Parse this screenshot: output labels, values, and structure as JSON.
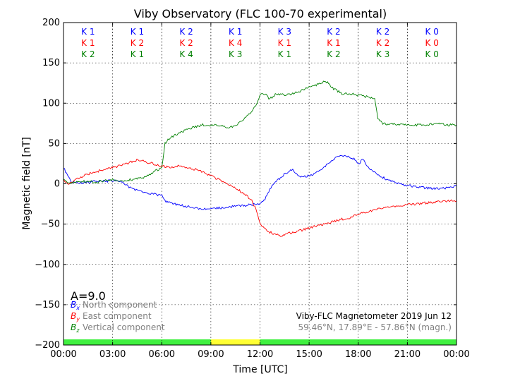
{
  "chart_data": {
    "type": "line",
    "title": "Viby Observatory (FLC 100-70 experimental)",
    "xlabel": "Time [UTC]",
    "ylabel": "Magnetic field [nT]",
    "xlim": [
      0,
      24
    ],
    "ylim": [
      -200,
      200
    ],
    "grid": true,
    "x_tick_labels": [
      "00:00",
      "03:00",
      "06:00",
      "09:00",
      "12:00",
      "15:00",
      "18:00",
      "21:00",
      "00:00"
    ],
    "y_ticks": [
      -200,
      -150,
      -100,
      -50,
      0,
      50,
      100,
      150,
      200
    ],
    "y_tick_labels": [
      "−200",
      "−150",
      "−100",
      "−50",
      "0",
      "50",
      "100",
      "150",
      "200"
    ],
    "k_index_rows": [
      {
        "values": [
          "K 1",
          "K 1",
          "K 2",
          "K 1",
          "K 3",
          "K 2",
          "K 2",
          "K 0"
        ],
        "color": "#0000ff"
      },
      {
        "values": [
          "K 1",
          "K 2",
          "K 2",
          "K 4",
          "K 1",
          "K 1",
          "K 2",
          "K 0"
        ],
        "color": "#ff0000"
      },
      {
        "values": [
          "K 2",
          "K 1",
          "K 4",
          "K 3",
          "K 1",
          "K 2",
          "K 3",
          "K 0"
        ],
        "color": "#008000"
      }
    ],
    "activity_bar": [
      {
        "from": 0,
        "to": 9,
        "color": "#40f040"
      },
      {
        "from": 9,
        "to": 12,
        "color": "#ffff33"
      },
      {
        "from": 12,
        "to": 24,
        "color": "#40f040"
      }
    ],
    "a_index_label": "A=9.0",
    "legend_placement": "bottom-left",
    "series": [
      {
        "symbol": "B",
        "subscript": "x",
        "name": "North component",
        "color": "#0000ff",
        "x": [
          0,
          0.5,
          1,
          1.5,
          2,
          2.5,
          3,
          3.5,
          4,
          4.5,
          5,
          5.5,
          6,
          6.2,
          6.5,
          7,
          7.5,
          8,
          8.5,
          9,
          9.5,
          10,
          10.5,
          11,
          11.5,
          11.8,
          12,
          12.3,
          12.6,
          13,
          13.3,
          13.6,
          14,
          14.3,
          14.6,
          15,
          15.3,
          15.7,
          16,
          16.3,
          16.6,
          16.9,
          17.2,
          17.5,
          17.8,
          18,
          18.3,
          18.6,
          19,
          19.5,
          20,
          20.5,
          21,
          21.5,
          22,
          22.5,
          23,
          23.5,
          24
        ],
        "values": [
          20,
          2,
          1,
          2,
          3,
          3,
          4,
          3,
          -4,
          -8,
          -11,
          -13,
          -14,
          -21,
          -24,
          -26,
          -28,
          -30,
          -31,
          -31,
          -30,
          -29,
          -28,
          -27,
          -26,
          -25,
          -24,
          -20,
          -6,
          3,
          8,
          14,
          17,
          12,
          8,
          10,
          12,
          18,
          22,
          27,
          32,
          34,
          35,
          33,
          30,
          25,
          30,
          20,
          15,
          8,
          3,
          0,
          -2,
          -3,
          -5,
          -6,
          -6,
          -5,
          -3
        ]
      },
      {
        "symbol": "B",
        "subscript": "y",
        "name": "East component",
        "color": "#ff0000",
        "x": [
          0,
          0.3,
          0.6,
          1,
          1.5,
          2,
          2.5,
          3,
          3.5,
          4,
          4.3,
          4.6,
          5,
          5.5,
          6,
          6.5,
          7,
          7.5,
          8,
          8.5,
          9,
          9.5,
          10,
          10.5,
          11,
          11.5,
          11.8,
          12,
          12.3,
          12.6,
          13,
          13.3,
          13.6,
          14,
          14.5,
          15,
          15.5,
          16,
          16.5,
          17,
          17.5,
          18,
          18.5,
          19,
          19.5,
          20,
          20.5,
          21,
          21.5,
          22,
          22.5,
          23,
          23.5,
          24
        ],
        "values": [
          5,
          0,
          3,
          8,
          12,
          15,
          18,
          20,
          23,
          26,
          28,
          30,
          27,
          25,
          22,
          20,
          22,
          21,
          18,
          15,
          10,
          5,
          0,
          -5,
          -12,
          -20,
          -35,
          -50,
          -55,
          -60,
          -63,
          -66,
          -62,
          -60,
          -58,
          -55,
          -52,
          -50,
          -47,
          -44,
          -42,
          -38,
          -35,
          -32,
          -30,
          -28,
          -27,
          -26,
          -25,
          -24,
          -23,
          -22,
          -21,
          -21
        ]
      },
      {
        "symbol": "B",
        "subscript": "z",
        "name": "Vertical component",
        "color": "#008000",
        "x": [
          0,
          0.3,
          0.6,
          1,
          1.5,
          2,
          2.5,
          3,
          3.5,
          4,
          4.5,
          5,
          5.5,
          6,
          6.2,
          6.5,
          7,
          7.5,
          8,
          8.5,
          9,
          9.5,
          10,
          10.5,
          11,
          11.5,
          11.8,
          12,
          12.3,
          12.6,
          13,
          13.5,
          14,
          14.5,
          15,
          15.5,
          16,
          16.5,
          17,
          17.5,
          18,
          18.5,
          19,
          19.2,
          19.5,
          20,
          20.5,
          21,
          21.5,
          22,
          22.5,
          23,
          23.5,
          24
        ],
        "values": [
          5,
          0,
          2,
          3,
          3,
          2,
          4,
          5,
          4,
          5,
          6,
          8,
          15,
          20,
          50,
          57,
          62,
          67,
          70,
          73,
          73,
          72,
          70,
          72,
          80,
          90,
          100,
          110,
          112,
          105,
          112,
          110,
          112,
          115,
          120,
          123,
          128,
          118,
          112,
          112,
          110,
          108,
          105,
          80,
          75,
          74,
          73,
          74,
          73,
          73,
          74,
          74,
          73,
          73
        ]
      }
    ]
  },
  "footer": {
    "title": "Viby-FLC Magnetometer 2019 Jun 12",
    "coordinates": "59.46°N, 17.89°E - 57.86°N (magn.)"
  }
}
